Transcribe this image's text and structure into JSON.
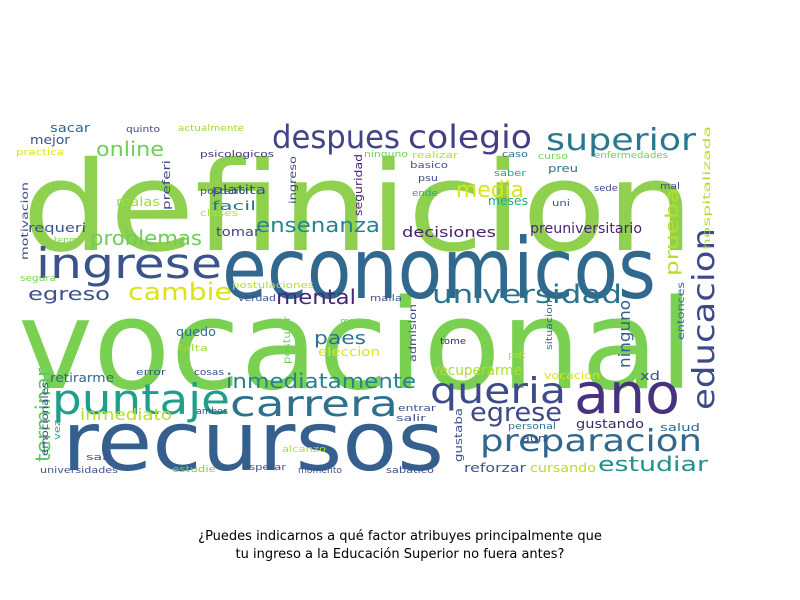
{
  "chart_data": {
    "type": "wordcloud",
    "title_lines": [
      "¿Puedes indicarnos a qué factor atribuyes principalmente que",
      "tu ingreso a la Educación Superior no fuera antes?"
    ],
    "words": [
      {
        "text": "definicion",
        "color": "#8fd14f"
      },
      {
        "text": "vocacional",
        "color": "#7ad151"
      },
      {
        "text": "economicos",
        "color": "#30688e"
      },
      {
        "text": "recursos",
        "color": "#35608d"
      },
      {
        "text": "ano",
        "color": "#46327e"
      },
      {
        "text": "ingrese",
        "color": "#3b528b"
      },
      {
        "text": "puntaje",
        "color": "#1f9e89"
      },
      {
        "text": "carrera",
        "color": "#2c728e"
      },
      {
        "text": "queria",
        "color": "#3e4a89"
      },
      {
        "text": "despues",
        "color": "#414487"
      },
      {
        "text": "colegio",
        "color": "#433e85"
      },
      {
        "text": "superior",
        "color": "#2a788e"
      },
      {
        "text": "preparacion",
        "color": "#31688e"
      },
      {
        "text": "educacion",
        "color": "#3e4989"
      },
      {
        "text": "universidad",
        "color": "#2c728e"
      },
      {
        "text": "egrese",
        "color": "#3f4889"
      },
      {
        "text": "cambie",
        "color": "#dde318"
      },
      {
        "text": "media",
        "color": "#dde318"
      },
      {
        "text": "estudiar",
        "color": "#21918c"
      },
      {
        "text": "problemas",
        "color": "#6ccd5a"
      },
      {
        "text": "inmediatamente",
        "color": "#26828e"
      },
      {
        "text": "online",
        "color": "#6ece58"
      },
      {
        "text": "ensenanza",
        "color": "#25858e"
      },
      {
        "text": "terminar",
        "color": "#5ec962"
      },
      {
        "text": "mental",
        "color": "#482878"
      },
      {
        "text": "egreso",
        "color": "#3b528b"
      },
      {
        "text": "paes",
        "color": "#2c728e"
      },
      {
        "text": "prueba",
        "color": "#b5de2b"
      },
      {
        "text": "ninguno",
        "color": "#355f8d"
      },
      {
        "text": "inmediato",
        "color": "#b5de2b"
      },
      {
        "text": "decisiones",
        "color": "#481f70"
      },
      {
        "text": "preuniversitario",
        "color": "#482475"
      },
      {
        "text": "recuperarme",
        "color": "#addc30"
      },
      {
        "text": "reforzar",
        "color": "#3b528b"
      },
      {
        "text": "gustando",
        "color": "#2c2c6a"
      },
      {
        "text": "facil",
        "color": "#2a788e"
      },
      {
        "text": "platita",
        "color": "#3e4989"
      },
      {
        "text": "tomar",
        "color": "#414487"
      },
      {
        "text": "malas",
        "color": "#9fda3a"
      },
      {
        "text": "meses",
        "color": "#22a884"
      },
      {
        "text": "requeri",
        "color": "#3b528b"
      },
      {
        "text": "sacar",
        "color": "#31688e"
      },
      {
        "text": "mejor",
        "color": "#3b528b"
      },
      {
        "text": "cursando",
        "color": "#b5de2b"
      },
      {
        "text": "salud",
        "color": "#31688e"
      },
      {
        "text": "quedo",
        "color": "#2c728e"
      },
      {
        "text": "retirarme",
        "color": "#31688e"
      },
      {
        "text": "eleccion",
        "color": "#dde318"
      },
      {
        "text": "vocacion",
        "color": "#dde318"
      },
      {
        "text": "xd",
        "color": "#3e4a89"
      },
      {
        "text": "gustaba",
        "color": "#3b528b"
      },
      {
        "text": "seguridad",
        "color": "#482475"
      },
      {
        "text": "preferi",
        "color": "#3f4889"
      },
      {
        "text": "emocionales",
        "color": "#3e4989"
      },
      {
        "text": "hospitalizada",
        "color": "#b5de2b"
      },
      {
        "text": "mayor",
        "color": "#7ad151"
      },
      {
        "text": "entonces",
        "color": "#2c728e"
      },
      {
        "text": "admision",
        "color": "#3b528b"
      },
      {
        "text": "postular",
        "color": "#6ece58"
      },
      {
        "text": "motivacion",
        "color": "#3e4989"
      },
      {
        "text": "ingreso",
        "color": "#3e4989"
      },
      {
        "text": "posterior",
        "color": "#3b528b"
      },
      {
        "text": "psicologicos",
        "color": "#46327e"
      },
      {
        "text": "actualmente",
        "color": "#9fda3a"
      },
      {
        "text": "quinto",
        "color": "#3e4989"
      },
      {
        "text": "practica",
        "color": "#dde318"
      },
      {
        "text": "ninguno",
        "color": "#6ece58"
      },
      {
        "text": "realizar",
        "color": "#b5de2b"
      },
      {
        "text": "basico",
        "color": "#3b528b"
      },
      {
        "text": "psu",
        "color": "#3e4989"
      },
      {
        "text": "caso",
        "color": "#2c728e"
      },
      {
        "text": "saber",
        "color": "#1f9e89"
      },
      {
        "text": "preu",
        "color": "#2c728e"
      },
      {
        "text": "curso",
        "color": "#7ad151"
      },
      {
        "text": "enfermedades",
        "color": "#6ece58"
      },
      {
        "text": "sede",
        "color": "#3e4989"
      },
      {
        "text": "mal",
        "color": "#3e4989"
      },
      {
        "text": "ende",
        "color": "#22a884"
      },
      {
        "text": "uni",
        "color": "#3b528b"
      },
      {
        "text": "clases",
        "color": "#b5de2b"
      },
      {
        "text": "tenm",
        "color": "#7ad151"
      },
      {
        "text": "segura",
        "color": "#7ad151"
      },
      {
        "text": "postulaciones",
        "color": "#b5de2b"
      },
      {
        "text": "verdad",
        "color": "#3b528b"
      },
      {
        "text": "malla",
        "color": "#3b528b"
      },
      {
        "text": "tome",
        "color": "#2c2c6a"
      },
      {
        "text": "situacion",
        "color": "#2c728e"
      },
      {
        "text": "pdt",
        "color": "#b5de2b"
      },
      {
        "text": "falta",
        "color": "#9fda3a"
      },
      {
        "text": "error",
        "color": "#3b528b"
      },
      {
        "text": "cosas",
        "color": "#3b528b"
      },
      {
        "text": "ambos",
        "color": "#3b528b"
      },
      {
        "text": "entrar",
        "color": "#3b528b"
      },
      {
        "text": "salir",
        "color": "#3b528b"
      },
      {
        "text": "personal",
        "color": "#2c728e"
      },
      {
        "text": "aun",
        "color": "#3e4989"
      },
      {
        "text": "vez",
        "color": "#22a884"
      },
      {
        "text": "sali",
        "color": "#3b528b"
      },
      {
        "text": "alcanzo",
        "color": "#b5de2b"
      },
      {
        "text": "estudie",
        "color": "#7ad151"
      },
      {
        "text": "esperar",
        "color": "#3b528b"
      },
      {
        "text": "universidades",
        "color": "#3b528b"
      },
      {
        "text": "momento",
        "color": "#3b528b"
      },
      {
        "text": "sabatico",
        "color": "#3b528b"
      }
    ]
  }
}
